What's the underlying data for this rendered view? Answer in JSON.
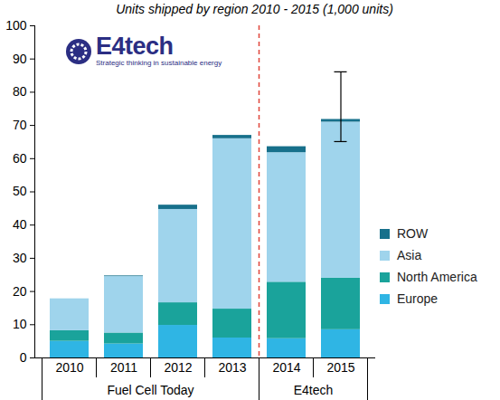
{
  "chart_data": {
    "type": "bar",
    "stacked": true,
    "title": "Units shipped by region 2010 - 2015 (1,000 units)",
    "logo": {
      "name": "E4tech",
      "tagline": "Strategic thinking in sustainable energy"
    },
    "categories": [
      "2010",
      "2011",
      "2012",
      "2013",
      "2014",
      "2015"
    ],
    "groups": [
      {
        "label": "Fuel Cell Today",
        "categories": [
          "2010",
          "2011",
          "2012",
          "2013"
        ]
      },
      {
        "label": "E4tech",
        "categories": [
          "2014",
          "2015"
        ]
      }
    ],
    "series": [
      {
        "name": "Europe",
        "color": "#2fb5e4",
        "values": [
          5,
          4.2,
          9.8,
          6,
          5.8,
          8.5
        ]
      },
      {
        "name": "North America",
        "color": "#1aa39b",
        "values": [
          3.2,
          3.3,
          6.8,
          8.7,
          17,
          15.5
        ]
      },
      {
        "name": "Asia",
        "color": "#9fd4ec",
        "values": [
          9.6,
          17,
          28.1,
          51.3,
          39,
          47
        ]
      },
      {
        "name": "ROW",
        "color": "#17708b",
        "values": [
          0,
          0.2,
          1.3,
          1,
          1.8,
          0.8
        ]
      }
    ],
    "error_bars": [
      {
        "category": "2015",
        "low": 65,
        "high": 86
      }
    ],
    "ylim": [
      0,
      100
    ],
    "yticks": [
      0,
      10,
      20,
      30,
      40,
      50,
      60,
      70,
      80,
      90,
      100
    ],
    "grid": false,
    "legend": "right"
  }
}
